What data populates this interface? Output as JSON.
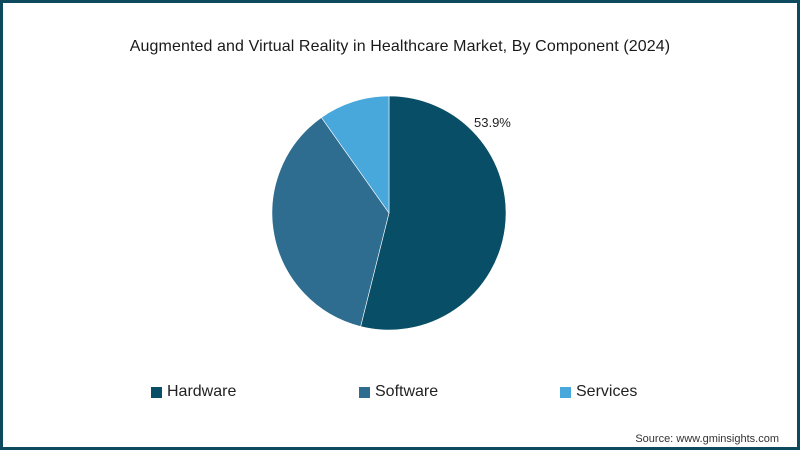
{
  "title": "Augmented and Virtual Reality in Healthcare Market, By Component (2024)",
  "source": "Source: www.gminsights.com",
  "colors": {
    "border": "#0d4a5e",
    "hardware": "#074e66",
    "software": "#2e6c90",
    "services": "#48a8dc"
  },
  "legend": [
    {
      "label": "Hardware",
      "color": "#074e66"
    },
    {
      "label": "Software",
      "color": "#2e6c90"
    },
    {
      "label": "Services",
      "color": "#48a8dc"
    }
  ],
  "data_label": "53.9%",
  "chart_data": {
    "type": "pie",
    "title": "Augmented and Virtual Reality in Healthcare Market, By Component (2024)",
    "categories": [
      "Hardware",
      "Software",
      "Services"
    ],
    "values": [
      53.9,
      36.3,
      9.8
    ],
    "unit": "%",
    "annotations": [
      {
        "category": "Hardware",
        "text": "53.9%"
      }
    ],
    "legend_position": "bottom",
    "start_angle_deg": 0,
    "direction": "clockwise",
    "source": "Source: www.gminsights.com"
  }
}
